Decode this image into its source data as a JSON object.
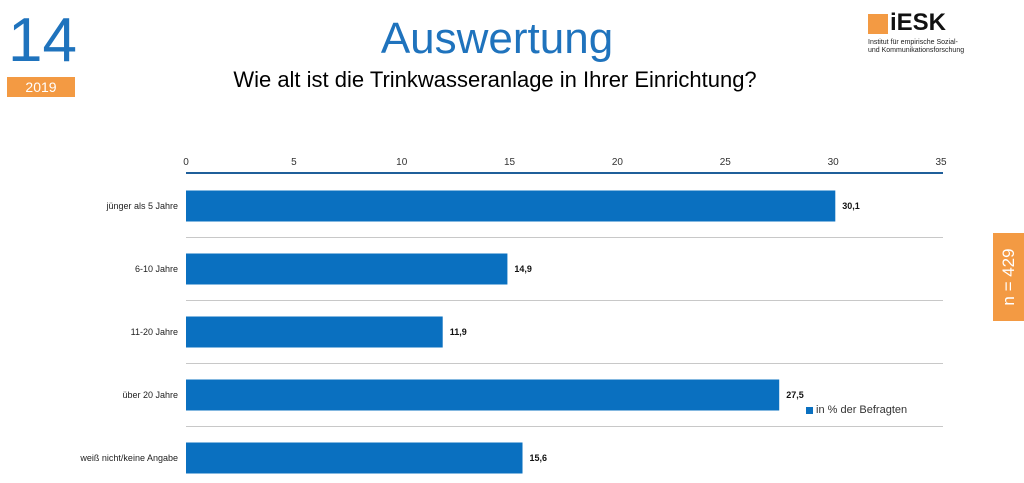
{
  "header": {
    "slide_number": "14",
    "year": "2019",
    "title": "Auswertung",
    "subtitle": "Wie alt ist die Trinkwasseranlage in Ihrer Einrichtung?"
  },
  "logo": {
    "name": "iESK",
    "line1": "Institut für empirische Sozial-",
    "line2": "und Kommunikationsforschung"
  },
  "sample": {
    "label": "n = 429"
  },
  "colors": {
    "bar": "#0a70c0",
    "accent_orange": "#f39a43",
    "title_blue": "#1f73bd"
  },
  "chart_data": {
    "type": "bar",
    "orientation": "horizontal",
    "categories": [
      "jünger als 5 Jahre",
      "6-10 Jahre",
      "11-20 Jahre",
      "über 20 Jahre",
      "weiß nicht/keine Angabe"
    ],
    "series": [
      {
        "name": "in % der Befragten",
        "values": [
          30.1,
          14.9,
          11.9,
          27.5,
          15.6
        ],
        "labels": [
          "30,1",
          "14,9",
          "11,9",
          "27,5",
          "15,6"
        ]
      }
    ],
    "xlim": [
      0,
      35
    ],
    "xticks": [
      0,
      5,
      10,
      15,
      20,
      25,
      30,
      35
    ],
    "axis_position": "top",
    "legend": "bottom-right"
  }
}
